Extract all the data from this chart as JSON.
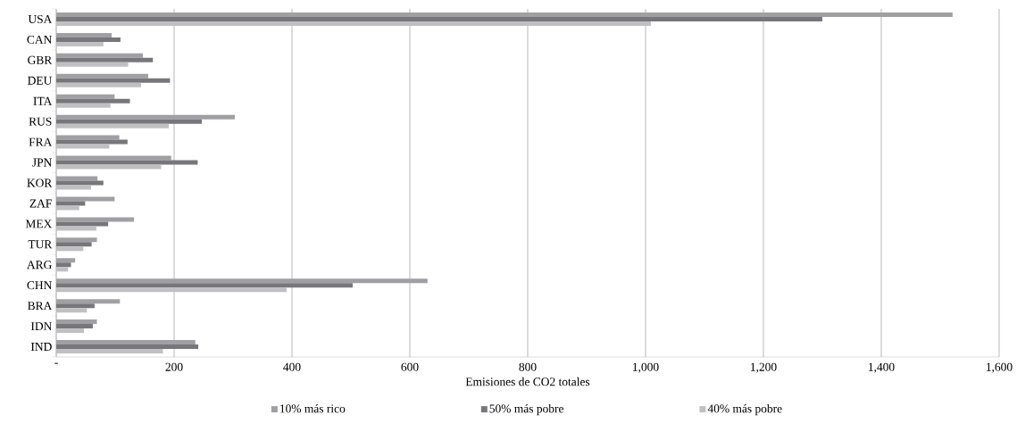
{
  "chart_data": {
    "type": "bar",
    "orientation": "horizontal",
    "xlabel": "Emisiones de CO2 totales",
    "categories": [
      "USA",
      "CAN",
      "GBR",
      "DEU",
      "ITA",
      "RUS",
      "FRA",
      "JPN",
      "KOR",
      "ZAF",
      "MEX",
      "TUR",
      "ARG",
      "CHN",
      "BRA",
      "IDN",
      "IND"
    ],
    "series": [
      {
        "name": "10% más rico",
        "color": "#a0a0a4",
        "values": [
          1521,
          94,
          147,
          156,
          99,
          303,
          107,
          195,
          70,
          99,
          132,
          69,
          32,
          630,
          108,
          69,
          236
        ]
      },
      {
        "name": "50% más pobre",
        "color": "#77777b",
        "values": [
          1300,
          109,
          164,
          193,
          125,
          247,
          121,
          240,
          80,
          49,
          88,
          60,
          25,
          503,
          65,
          62,
          241
        ]
      },
      {
        "name": "40% más pobre",
        "color": "#c0c0c3",
        "values": [
          1009,
          80,
          122,
          144,
          92,
          191,
          90,
          178,
          59,
          39,
          68,
          46,
          20,
          391,
          52,
          47,
          181
        ]
      }
    ],
    "xlim": [
      0,
      1600
    ],
    "xticks": [
      {
        "value": 0,
        "label": "-"
      },
      200,
      400,
      600,
      800,
      {
        "value": 1000,
        "label": "1,000"
      },
      {
        "value": 1200,
        "label": "1,200"
      },
      {
        "value": 1400,
        "label": "1,400"
      },
      {
        "value": 1600,
        "label": "1,600"
      }
    ],
    "grid": "x",
    "legend": "bottom"
  }
}
